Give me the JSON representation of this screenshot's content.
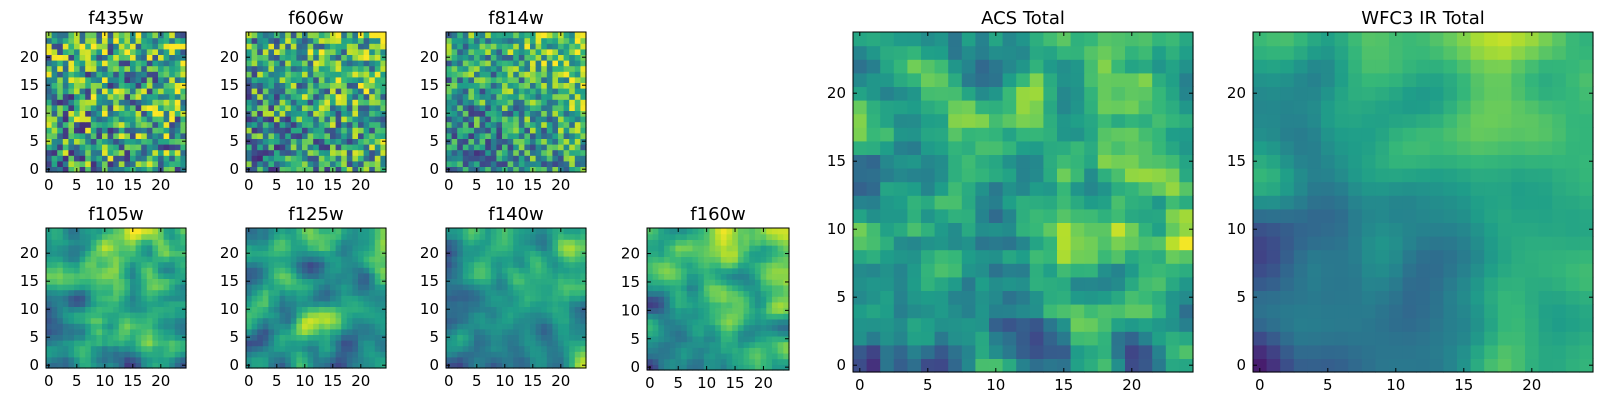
{
  "chart_data": [
    {
      "type": "heatmap",
      "title": "f435w",
      "xticks": [
        "0",
        "5",
        "10",
        "15",
        "20"
      ],
      "yticks": [
        "0",
        "5",
        "10",
        "15",
        "20"
      ],
      "xlim": [
        0,
        25
      ],
      "ylim": [
        0,
        25
      ],
      "grid": "25x25",
      "smoothness": 0.0,
      "gradient": 0.25,
      "seed": 11,
      "colormap": "viridis"
    },
    {
      "type": "heatmap",
      "title": "f606w",
      "xticks": [
        "0",
        "5",
        "10",
        "15",
        "20"
      ],
      "yticks": [
        "0",
        "5",
        "10",
        "15",
        "20"
      ],
      "xlim": [
        0,
        25
      ],
      "ylim": [
        0,
        25
      ],
      "grid": "25x25",
      "smoothness": 0.0,
      "gradient": 0.45,
      "seed": 22,
      "colormap": "viridis"
    },
    {
      "type": "heatmap",
      "title": "f814w",
      "xticks": [
        "0",
        "5",
        "10",
        "15",
        "20"
      ],
      "yticks": [
        "0",
        "5",
        "10",
        "15",
        "20"
      ],
      "xlim": [
        0,
        25
      ],
      "ylim": [
        0,
        25
      ],
      "grid": "25x25",
      "smoothness": 0.1,
      "gradient": 0.6,
      "seed": 33,
      "colormap": "viridis"
    },
    {
      "type": "heatmap",
      "title": "f105w",
      "xticks": [
        "0",
        "5",
        "10",
        "15",
        "20"
      ],
      "yticks": [
        "0",
        "5",
        "10",
        "15",
        "20"
      ],
      "xlim": [
        0,
        25
      ],
      "ylim": [
        0,
        25
      ],
      "grid": "25x25",
      "smoothness": 0.45,
      "gradient": 0.6,
      "seed": 44,
      "colormap": "viridis"
    },
    {
      "type": "heatmap",
      "title": "f125w",
      "xticks": [
        "0",
        "5",
        "10",
        "15",
        "20"
      ],
      "yticks": [
        "0",
        "5",
        "10",
        "15",
        "20"
      ],
      "xlim": [
        0,
        25
      ],
      "ylim": [
        0,
        25
      ],
      "grid": "25x25",
      "smoothness": 0.5,
      "gradient": 0.45,
      "seed": 55,
      "colormap": "viridis"
    },
    {
      "type": "heatmap",
      "title": "f140w",
      "xticks": [
        "0",
        "5",
        "10",
        "15",
        "20"
      ],
      "yticks": [
        "0",
        "5",
        "10",
        "15",
        "20"
      ],
      "xlim": [
        0,
        25
      ],
      "ylim": [
        0,
        25
      ],
      "grid": "25x25",
      "smoothness": 0.45,
      "gradient": 0.6,
      "seed": 66,
      "colormap": "viridis"
    },
    {
      "type": "heatmap",
      "title": "f160w",
      "xticks": [
        "0",
        "5",
        "10",
        "15",
        "20"
      ],
      "yticks": [
        "0",
        "5",
        "10",
        "15",
        "20"
      ],
      "xlim": [
        0,
        25
      ],
      "ylim": [
        0,
        25
      ],
      "grid": "25x25",
      "smoothness": 0.55,
      "gradient": 0.8,
      "seed": 77,
      "colormap": "viridis"
    },
    {
      "type": "heatmap",
      "title": "ACS Total",
      "xticks": [
        "0",
        "5",
        "10",
        "15",
        "20"
      ],
      "yticks": [
        "0",
        "5",
        "10",
        "15",
        "20"
      ],
      "xlim": [
        0,
        25
      ],
      "ylim": [
        0,
        25
      ],
      "grid": "25x25",
      "smoothness": 0.15,
      "gradient": 0.55,
      "seed": 88,
      "colormap": "viridis"
    },
    {
      "type": "heatmap",
      "title": "WFC3 IR Total",
      "xticks": [
        "0",
        "5",
        "10",
        "15",
        "20"
      ],
      "yticks": [
        "0",
        "5",
        "10",
        "15",
        "20"
      ],
      "xlim": [
        0,
        25
      ],
      "ylim": [
        0,
        25
      ],
      "grid": "25x25",
      "smoothness": 0.7,
      "gradient": 1.0,
      "seed": 99,
      "colormap": "viridis"
    }
  ]
}
